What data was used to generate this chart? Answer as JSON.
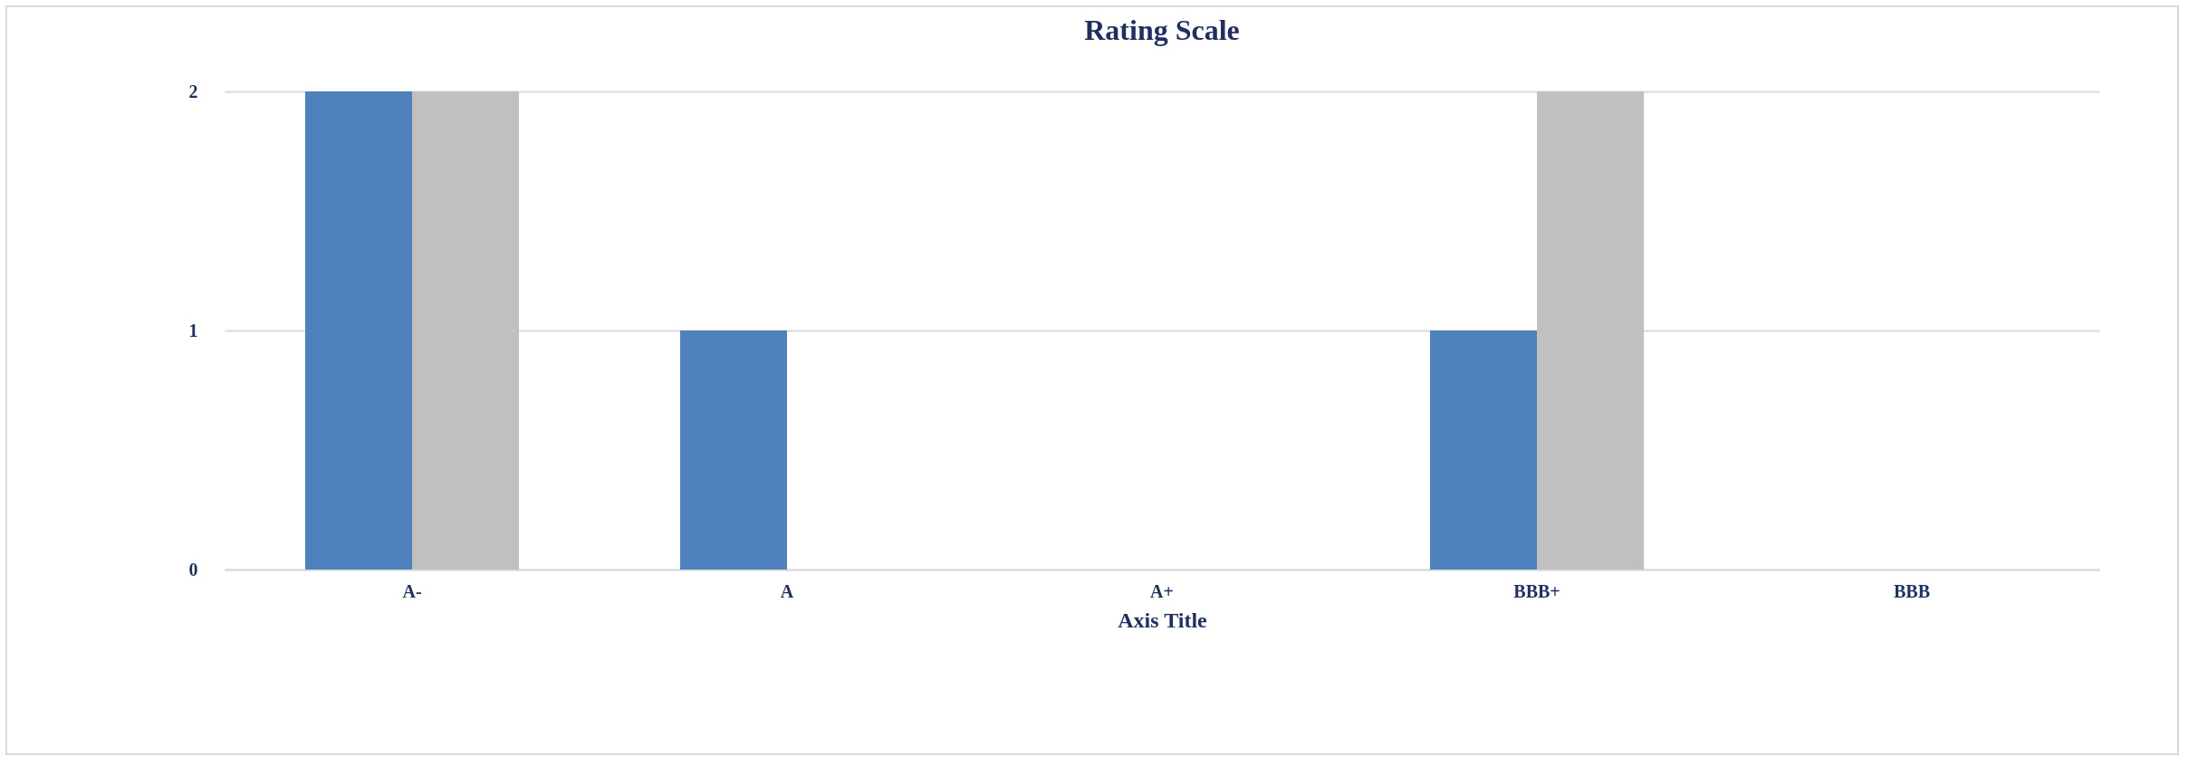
{
  "chart_data": {
    "type": "bar",
    "title": "Rating Scale",
    "xlabel": "Axis Title",
    "categories": [
      "A-",
      "A",
      "A+",
      "BBB+",
      "BBB"
    ],
    "series": [
      {
        "color": "#4f81bd",
        "values": [
          2,
          1,
          0,
          1,
          0
        ]
      },
      {
        "color": "#c0c0c0",
        "values": [
          2,
          0,
          0,
          2,
          0
        ]
      }
    ],
    "ylim": [
      0,
      2
    ],
    "yticks": [
      0,
      1,
      2
    ],
    "grid": "y"
  }
}
